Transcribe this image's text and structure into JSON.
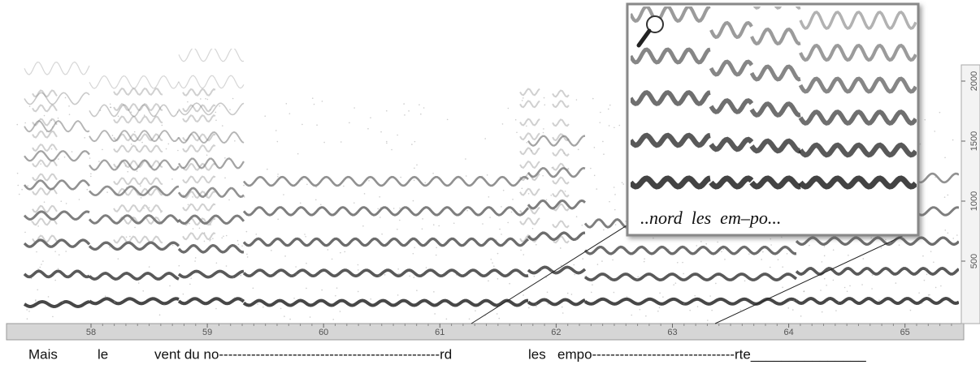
{
  "time_axis": {
    "ticks": [
      58,
      59,
      60,
      61,
      62,
      63,
      64,
      65
    ]
  },
  "frequency_axis": {
    "ticks": [
      500,
      1000,
      1500,
      2000
    ]
  },
  "lyrics": [
    "Mais",
    "le",
    "vent du no------------------------------------------------rd",
    "les",
    "empo-------------------------------rte_______________"
  ],
  "inset": {
    "caption": "..nord  les  em–po..."
  }
}
